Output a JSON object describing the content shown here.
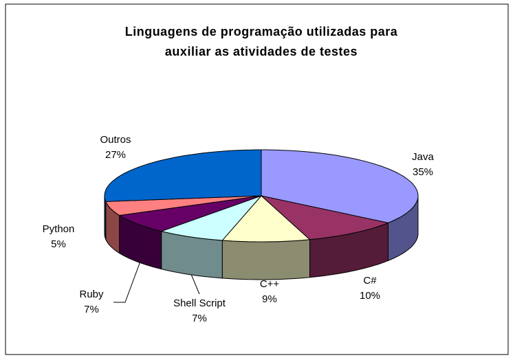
{
  "chart_data": {
    "type": "pie",
    "title": [
      "Linguagens de programação utilizadas para",
      "auxiliar as atividades de testes"
    ],
    "categories": [
      "Java",
      "C#",
      "C++",
      "Shell Script",
      "Ruby",
      "Python",
      "Outros"
    ],
    "values": [
      35,
      10,
      9,
      7,
      7,
      5,
      27
    ],
    "value_labels": [
      "35%",
      "10%",
      "9%",
      "7%",
      "7%",
      "5%",
      "27%"
    ],
    "colors": [
      "#9999ff",
      "#993366",
      "#ffffcc",
      "#ccffff",
      "#660066",
      "#ff8080",
      "#0066cc"
    ]
  }
}
